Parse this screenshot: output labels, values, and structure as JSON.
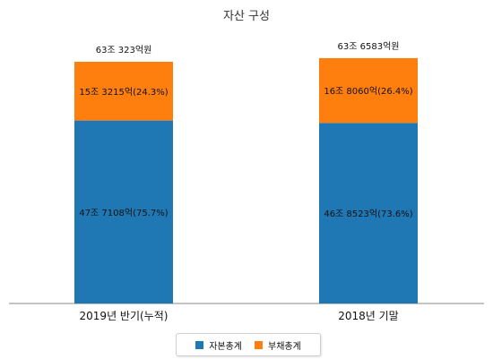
{
  "chart_data": {
    "type": "bar",
    "stacked": true,
    "title": "자산 구성",
    "categories": [
      "2019년 반기(누적)",
      "2018년 기말"
    ],
    "totals": [
      "63조 323억원",
      "63조 6583억원"
    ],
    "series": [
      {
        "name": "자본총계",
        "color": "#1f77b4",
        "values": [
          75.7,
          73.6
        ],
        "labels": [
          "47조 7108억(75.7%)",
          "46조 8523억(73.6%)"
        ]
      },
      {
        "name": "부채총계",
        "color": "#ff7f0e",
        "values": [
          24.3,
          26.4
        ],
        "labels": [
          "15조 3215억(24.3%)",
          "16조 8060억(26.4%)"
        ]
      }
    ],
    "grid": false,
    "legend": "bottom"
  }
}
